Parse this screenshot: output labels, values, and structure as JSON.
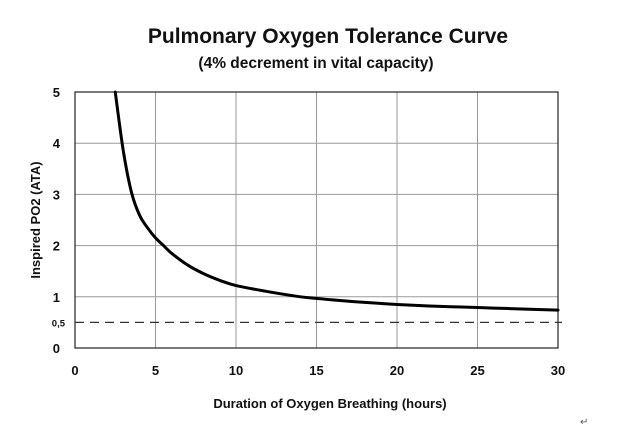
{
  "chart_data": {
    "type": "line",
    "title": "Pulmonary Oxygen Tolerance Curve",
    "subtitle": "(4% decrement in vital capacity)",
    "xlabel": "Duration of Oxygen Breathing (hours)",
    "ylabel": "Inspired PO2  (ATA)",
    "xlim": [
      0,
      30
    ],
    "ylim": [
      0,
      5
    ],
    "x_ticks": [
      "0",
      "5",
      "10",
      "15",
      "20",
      "25",
      "30"
    ],
    "y_ticks": [
      "0",
      "1",
      "2",
      "3",
      "4",
      "5"
    ],
    "grid": true,
    "series": [
      {
        "x": [
          2.5,
          3,
          3.5,
          4,
          4.5,
          5,
          5.5,
          6,
          7,
          8,
          9,
          10,
          12,
          14,
          15,
          16,
          18,
          20,
          22,
          24,
          26,
          28,
          30
        ],
        "y": [
          5.0,
          3.85,
          3.05,
          2.6,
          2.35,
          2.15,
          2.0,
          1.85,
          1.62,
          1.45,
          1.32,
          1.22,
          1.1,
          1.0,
          0.97,
          0.94,
          0.89,
          0.85,
          0.82,
          0.8,
          0.78,
          0.76,
          0.74
        ]
      }
    ],
    "reference_line": {
      "y": 0.5,
      "label": "0,5",
      "style": "dashed"
    }
  },
  "corner_mark": "↵"
}
